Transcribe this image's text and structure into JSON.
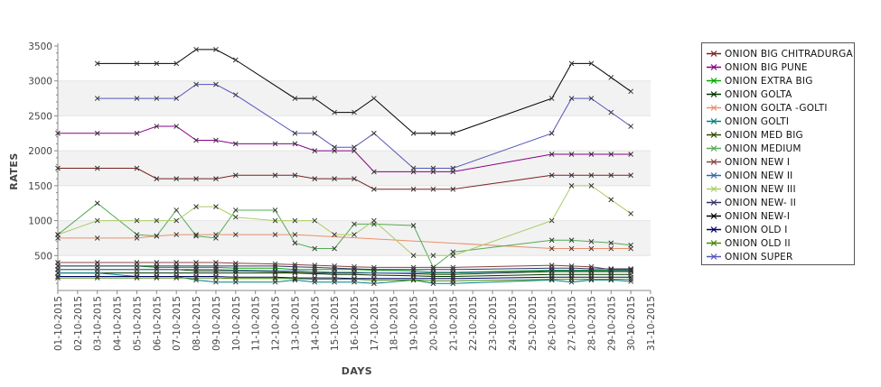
{
  "chart_data": {
    "type": "line",
    "xlabel": "DAYS",
    "ylabel": "RATES",
    "ylim": [
      0,
      3500
    ],
    "yticks": [
      500,
      1000,
      1500,
      2000,
      2500,
      3000,
      3500
    ],
    "x": [
      "01-10-2015",
      "02-10-2015",
      "03-10-2015",
      "04-10-2015",
      "05-10-2015",
      "06-10-2015",
      "07-10-2015",
      "08-10-2015",
      "09-10-2015",
      "10-10-2015",
      "11-10-2015",
      "12-10-2015",
      "13-10-2015",
      "14-10-2015",
      "15-10-2015",
      "16-10-2015",
      "17-10-2015",
      "18-10-2015",
      "19-10-2015",
      "20-10-2015",
      "21-10-2015",
      "22-10-2015",
      "23-10-2015",
      "24-10-2015",
      "25-10-2015",
      "26-10-2015",
      "27-10-2015",
      "28-10-2015",
      "29-10-2015",
      "30-10-2015",
      "31-10-2015"
    ],
    "grid": "alternating horizontal bands",
    "legend_position": "right",
    "series": [
      {
        "name": "ONION BIG CHITRADURGA",
        "color": "#7a2020",
        "values": [
          1750,
          null,
          1750,
          null,
          1750,
          1600,
          1600,
          1600,
          1600,
          1650,
          null,
          1650,
          1650,
          1600,
          1600,
          1600,
          1450,
          null,
          1450,
          1450,
          1450,
          null,
          null,
          null,
          null,
          1650,
          1650,
          1650,
          1650,
          1650,
          null
        ]
      },
      {
        "name": "ONION BIG PUNE",
        "color": "#880088",
        "values": [
          2250,
          null,
          2250,
          null,
          2250,
          2350,
          2350,
          2150,
          2150,
          2100,
          null,
          2100,
          2100,
          2000,
          2000,
          2000,
          1700,
          null,
          1700,
          1700,
          1700,
          null,
          null,
          null,
          null,
          1950,
          1950,
          1950,
          1950,
          1950,
          null
        ]
      },
      {
        "name": "ONION EXTRA BIG",
        "color": "#00aa00",
        "values": [
          350,
          null,
          350,
          null,
          350,
          330,
          330,
          330,
          330,
          320,
          null,
          320,
          300,
          300,
          300,
          300,
          290,
          null,
          280,
          260,
          260,
          null,
          null,
          null,
          null,
          290,
          290,
          290,
          290,
          290,
          null
        ]
      },
      {
        "name": "ONION GOLTA",
        "color": "#003300",
        "values": [
          250,
          null,
          250,
          null,
          250,
          250,
          250,
          250,
          250,
          250,
          null,
          250,
          250,
          240,
          230,
          230,
          220,
          null,
          210,
          200,
          200,
          null,
          null,
          null,
          null,
          230,
          230,
          230,
          230,
          230,
          null
        ]
      },
      {
        "name": "ONION GOLTA -GOLTI",
        "color": "#e8906a",
        "values": [
          750,
          null,
          750,
          null,
          750,
          780,
          800,
          800,
          800,
          800,
          null,
          800,
          800,
          null,
          null,
          null,
          null,
          null,
          null,
          null,
          null,
          null,
          null,
          null,
          null,
          600,
          600,
          600,
          600,
          600,
          null
        ]
      },
      {
        "name": "ONION GOLTI",
        "color": "#008080",
        "values": [
          250,
          null,
          250,
          null,
          200,
          200,
          200,
          150,
          120,
          120,
          null,
          120,
          150,
          120,
          120,
          120,
          100,
          null,
          150,
          100,
          100,
          null,
          null,
          null,
          null,
          150,
          120,
          150,
          150,
          130,
          null
        ]
      },
      {
        "name": "ONION MED BIG",
        "color": "#2a4a00",
        "values": [
          300,
          null,
          300,
          null,
          300,
          300,
          300,
          280,
          280,
          280,
          null,
          270,
          260,
          250,
          250,
          250,
          250,
          null,
          240,
          230,
          230,
          null,
          null,
          null,
          null,
          270,
          270,
          270,
          270,
          270,
          null
        ]
      },
      {
        "name": "ONION MEDIUM",
        "color": "#55aa55",
        "values": [
          800,
          null,
          1250,
          null,
          800,
          780,
          1150,
          780,
          750,
          1150,
          null,
          1150,
          680,
          600,
          600,
          950,
          950,
          null,
          930,
          330,
          550,
          null,
          null,
          null,
          null,
          720,
          720,
          700,
          680,
          650,
          null
        ]
      },
      {
        "name": "ONION NEW I",
        "color": "#884444",
        "values": [
          400,
          null,
          400,
          null,
          400,
          400,
          400,
          400,
          400,
          390,
          null,
          380,
          370,
          360,
          350,
          340,
          330,
          null,
          330,
          330,
          330,
          null,
          null,
          null,
          null,
          360,
          350,
          340,
          300,
          300,
          null
        ]
      },
      {
        "name": "ONION NEW II",
        "color": "#3366aa",
        "values": [
          300,
          null,
          300,
          null,
          300,
          300,
          300,
          300,
          300,
          290,
          null,
          280,
          280,
          270,
          260,
          260,
          250,
          null,
          250,
          250,
          250,
          null,
          null,
          null,
          null,
          280,
          280,
          280,
          280,
          280,
          null
        ]
      },
      {
        "name": "ONION NEW III",
        "color": "#aacc66",
        "values": [
          800,
          null,
          1000,
          null,
          1000,
          1000,
          1000,
          1200,
          1200,
          1050,
          null,
          1000,
          1000,
          1000,
          800,
          800,
          1000,
          null,
          500,
          500,
          500,
          null,
          null,
          null,
          null,
          1000,
          1500,
          1500,
          1300,
          1100,
          null
        ]
      },
      {
        "name": "ONION NEW- II",
        "color": "#333366",
        "values": [
          350,
          null,
          350,
          null,
          350,
          350,
          350,
          350,
          350,
          350,
          null,
          350,
          340,
          330,
          320,
          310,
          300,
          null,
          300,
          300,
          300,
          null,
          null,
          null,
          null,
          320,
          320,
          310,
          310,
          310,
          null
        ]
      },
      {
        "name": "ONION NEW-I",
        "color": "#000000",
        "values": [
          null,
          null,
          3250,
          null,
          3250,
          3250,
          3250,
          3450,
          3450,
          3300,
          null,
          null,
          2750,
          2750,
          2550,
          2550,
          2750,
          null,
          2250,
          2250,
          2250,
          null,
          null,
          null,
          null,
          2750,
          3250,
          3250,
          3050,
          2850,
          null
        ]
      },
      {
        "name": "ONION OLD I",
        "color": "#000066",
        "values": [
          200,
          null,
          200,
          null,
          200,
          200,
          200,
          200,
          200,
          190,
          null,
          190,
          180,
          180,
          180,
          170,
          170,
          null,
          170,
          170,
          170,
          null,
          null,
          null,
          null,
          190,
          190,
          190,
          190,
          190,
          null
        ]
      },
      {
        "name": "ONION OLD II",
        "color": "#448800",
        "values": [
          180,
          null,
          180,
          null,
          180,
          180,
          180,
          180,
          180,
          170,
          null,
          170,
          170,
          160,
          160,
          160,
          150,
          null,
          150,
          140,
          140,
          null,
          null,
          null,
          null,
          160,
          160,
          160,
          160,
          160,
          null
        ]
      },
      {
        "name": "ONION SUPER",
        "color": "#5555bb",
        "values": [
          null,
          null,
          2750,
          null,
          2750,
          2750,
          2750,
          2950,
          2950,
          2800,
          null,
          null,
          2250,
          2250,
          2050,
          2050,
          2250,
          null,
          1750,
          1750,
          1750,
          null,
          null,
          null,
          null,
          2250,
          2750,
          2750,
          2550,
          2350,
          null
        ]
      }
    ]
  }
}
